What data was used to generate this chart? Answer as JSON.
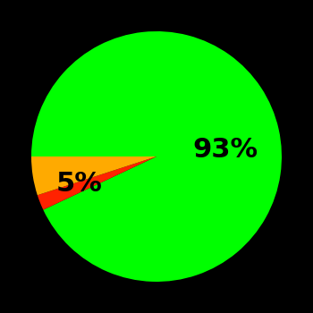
{
  "slices": [
    93,
    2,
    5
  ],
  "colors": [
    "#00ff00",
    "#ff2200",
    "#ffaa00"
  ],
  "labels": [
    "93%",
    "",
    "5%"
  ],
  "label_colors": [
    "#000000",
    "#000000",
    "#000000"
  ],
  "background_color": "#000000",
  "startangle": 180,
  "counterclock": false,
  "figsize": [
    3.5,
    3.5
  ],
  "dpi": 100,
  "font_size": 22,
  "font_weight": "bold",
  "label_positions": {
    "93%": [
      0.55,
      0.05
    ],
    "5%": [
      -0.62,
      -0.22
    ]
  }
}
